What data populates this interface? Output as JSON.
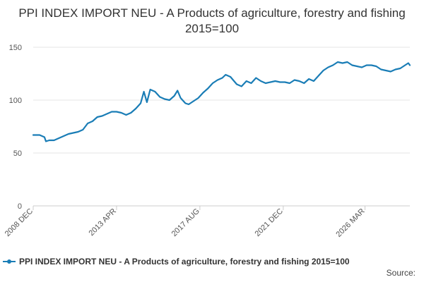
{
  "header": {
    "title": "PPI INDEX IMPORT NEU - A Products of agriculture, forestry and fishing 2015=100"
  },
  "footer": {
    "source_label": "Source:"
  },
  "colors": {
    "series": "#1a7db6",
    "grid": "#e6e6e6",
    "axis": "#cccccc"
  },
  "chart_data": {
    "type": "line",
    "title": "PPI INDEX IMPORT NEU - A Products of agriculture, forestry and fishing 2015=100",
    "xlabel": "",
    "ylabel": "",
    "ylim": [
      0,
      150
    ],
    "yticks": [
      0,
      50,
      100,
      150
    ],
    "xticks": [
      {
        "label": "2008 DEC",
        "t": 2008.917
      },
      {
        "label": "2013 APR",
        "t": 2013.25
      },
      {
        "label": "2017 AUG",
        "t": 2017.583
      },
      {
        "label": "2021 DEC",
        "t": 2021.917
      },
      {
        "label": "2026 MAR",
        "t": 2026.167
      }
    ],
    "grid": true,
    "legend_position": "bottom",
    "series": [
      {
        "name": "PPI INDEX IMPORT NEU - A Products of agriculture, forestry and fishing 2015=100",
        "color": "#1a7db6",
        "points": [
          [
            2008.917,
            67
          ],
          [
            2009.25,
            67
          ],
          [
            2009.5,
            65
          ],
          [
            2009.58,
            61
          ],
          [
            2009.75,
            62
          ],
          [
            2010.0,
            62
          ],
          [
            2010.25,
            64
          ],
          [
            2010.5,
            66
          ],
          [
            2010.75,
            68
          ],
          [
            2011.0,
            69
          ],
          [
            2011.25,
            70
          ],
          [
            2011.5,
            72
          ],
          [
            2011.75,
            78
          ],
          [
            2012.0,
            80
          ],
          [
            2012.25,
            84
          ],
          [
            2012.5,
            85
          ],
          [
            2012.75,
            87
          ],
          [
            2013.0,
            89
          ],
          [
            2013.25,
            89
          ],
          [
            2013.5,
            88
          ],
          [
            2013.75,
            86
          ],
          [
            2014.0,
            88
          ],
          [
            2014.25,
            92
          ],
          [
            2014.5,
            97
          ],
          [
            2014.67,
            108
          ],
          [
            2014.83,
            98
          ],
          [
            2015.0,
            110
          ],
          [
            2015.25,
            108
          ],
          [
            2015.5,
            103
          ],
          [
            2015.75,
            101
          ],
          [
            2016.0,
            100
          ],
          [
            2016.25,
            104
          ],
          [
            2016.42,
            109
          ],
          [
            2016.58,
            102
          ],
          [
            2016.83,
            97
          ],
          [
            2017.0,
            96
          ],
          [
            2017.25,
            99
          ],
          [
            2017.5,
            102
          ],
          [
            2017.75,
            107
          ],
          [
            2018.0,
            111
          ],
          [
            2018.25,
            116
          ],
          [
            2018.5,
            119
          ],
          [
            2018.75,
            121
          ],
          [
            2018.92,
            124
          ],
          [
            2019.17,
            122
          ],
          [
            2019.5,
            115
          ],
          [
            2019.75,
            113
          ],
          [
            2020.0,
            118
          ],
          [
            2020.25,
            116
          ],
          [
            2020.5,
            121
          ],
          [
            2020.75,
            118
          ],
          [
            2021.0,
            116
          ],
          [
            2021.25,
            117
          ],
          [
            2021.5,
            118
          ],
          [
            2021.75,
            117
          ],
          [
            2022.0,
            117
          ],
          [
            2022.25,
            116
          ],
          [
            2022.5,
            119
          ],
          [
            2022.75,
            118
          ],
          [
            2023.0,
            116
          ],
          [
            2023.25,
            120
          ],
          [
            2023.5,
            118
          ],
          [
            2023.75,
            123
          ],
          [
            2024.0,
            128
          ],
          [
            2024.25,
            131
          ],
          [
            2024.5,
            133
          ],
          [
            2024.75,
            136
          ],
          [
            2025.0,
            135
          ],
          [
            2025.25,
            136
          ],
          [
            2025.5,
            133
          ],
          [
            2025.75,
            132
          ],
          [
            2026.0,
            131
          ],
          [
            2026.25,
            133
          ],
          [
            2026.5,
            133
          ],
          [
            2026.75,
            132
          ],
          [
            2027.0,
            129
          ],
          [
            2027.25,
            128
          ],
          [
            2027.5,
            127
          ],
          [
            2027.75,
            129
          ],
          [
            2028.0,
            130
          ],
          [
            2028.25,
            133
          ],
          [
            2028.42,
            135
          ],
          [
            2028.5,
            133
          ]
        ]
      }
    ]
  }
}
